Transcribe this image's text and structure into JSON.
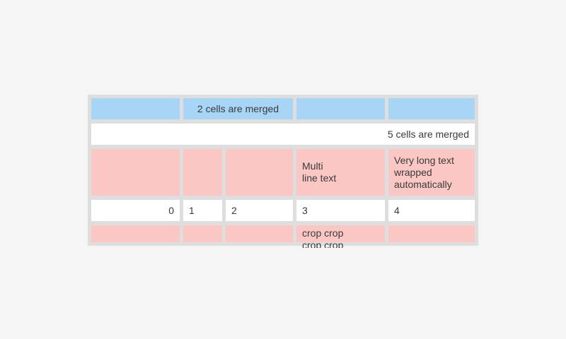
{
  "colors": {
    "page_background": "#f5f5f5",
    "table_border": "#dedede",
    "blue_cell": "#a8d5f6",
    "pink_cell": "#fbc7c5",
    "white_cell": "#ffffff",
    "text": "#3a3a3a"
  },
  "table": {
    "row1": {
      "merged_label": "2 cells are merged"
    },
    "row2": {
      "merged_label": "5 cells are merged"
    },
    "row3": {
      "multi_line_text": "Multi\nline text",
      "wrapped_text": "Very long text wrapped automatically"
    },
    "row4": {
      "values": [
        "0",
        "1",
        "2",
        "3",
        "4"
      ]
    },
    "row5": {
      "cropped_text": "crop crop crop crop"
    }
  }
}
